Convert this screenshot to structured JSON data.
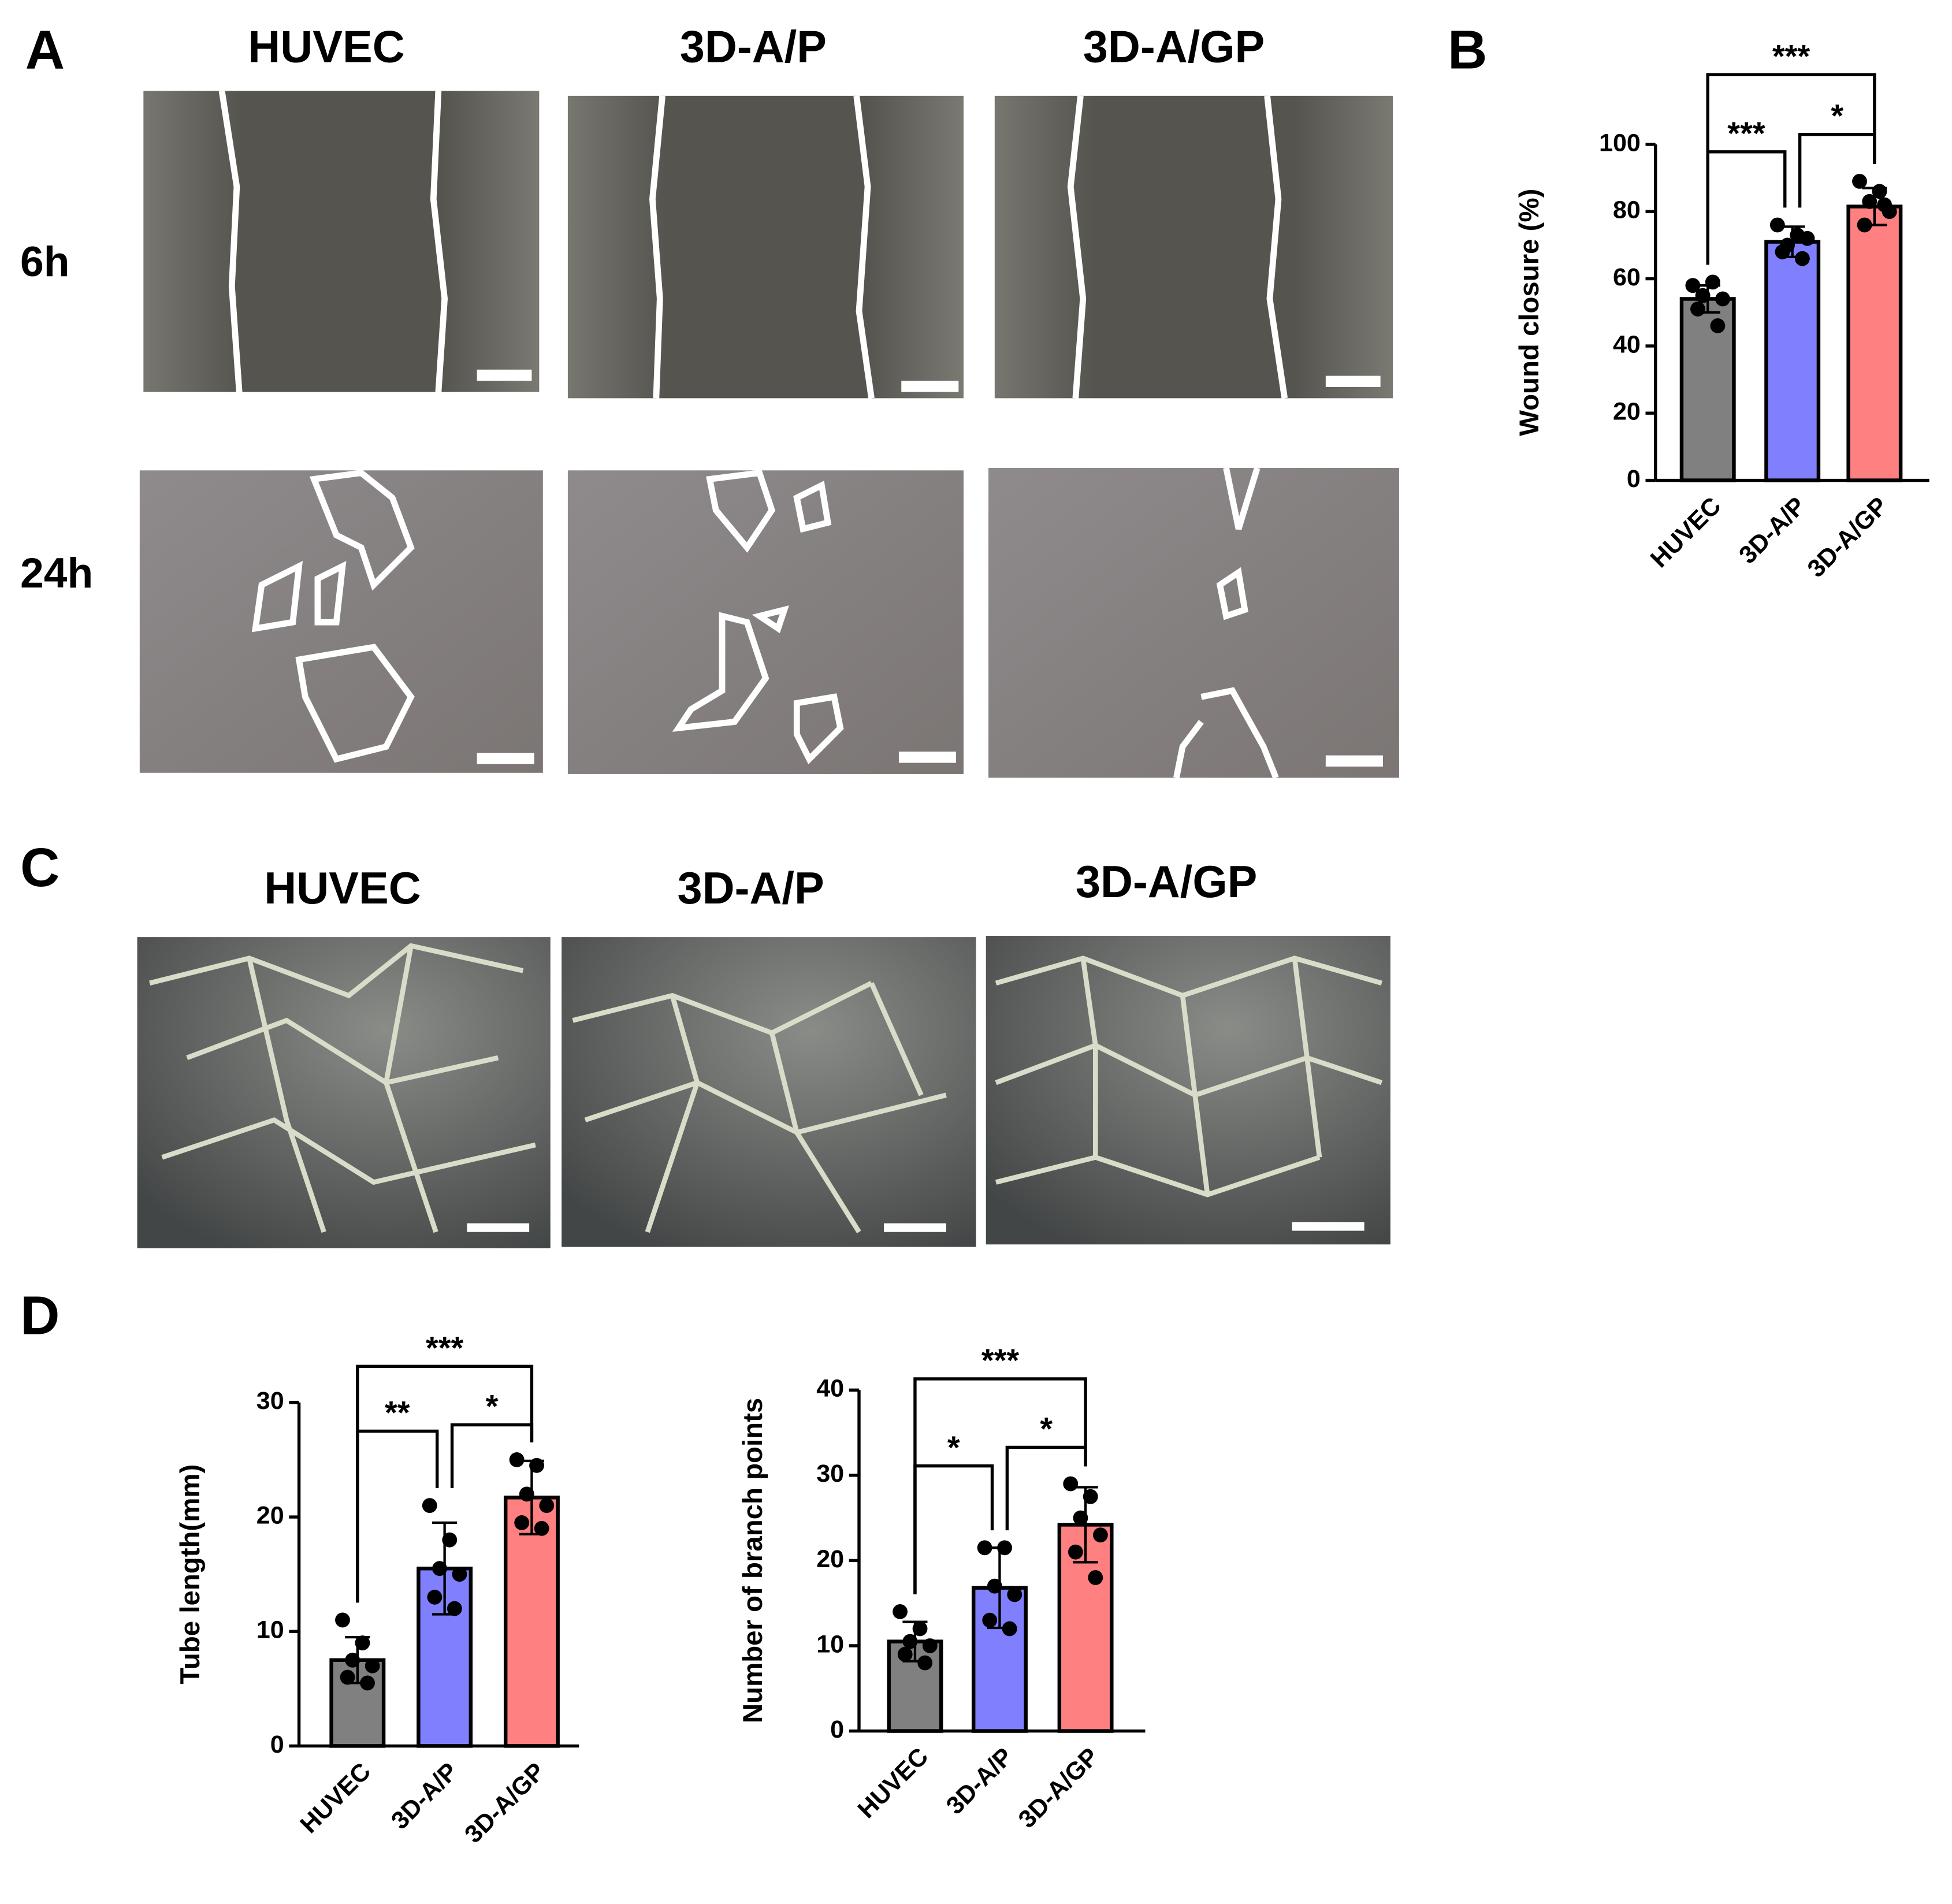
{
  "panel_labels": [
    "A",
    "B",
    "C",
    "D"
  ],
  "panel_a": {
    "columns": [
      "HUVEC",
      "3D-A/P",
      "3D-A/GP"
    ],
    "rows": [
      "6h",
      "24h"
    ]
  },
  "panel_c": {
    "columns": [
      "HUVEC",
      "3D-A/P",
      "3D-A/GP"
    ]
  },
  "chart_data": [
    {
      "type": "bar",
      "ylabel": "Wound closure (%)",
      "categories": [
        "HUVEC",
        "3D-A/P",
        "3D-A/GP"
      ],
      "values": [
        54,
        71,
        81.5
      ],
      "errors": [
        4,
        4.5,
        5.5
      ],
      "points": [
        [
          58,
          59,
          55,
          54,
          51,
          46
        ],
        [
          76,
          73,
          70,
          72,
          68,
          66
        ],
        [
          89,
          86,
          83,
          80,
          76,
          82
        ]
      ],
      "colors": [
        "#808080",
        "#8080ff",
        "#ff8080"
      ],
      "ylim": [
        0,
        100
      ],
      "yticks": [
        0,
        20,
        40,
        60,
        80,
        100
      ],
      "annotations": [
        {
          "text": "***",
          "between": [
            "HUVEC",
            "3D-A/P"
          ]
        },
        {
          "text": "*",
          "between": [
            "3D-A/P",
            "3D-A/GP"
          ]
        },
        {
          "text": "***",
          "between": [
            "HUVEC",
            "3D-A/GP"
          ]
        }
      ]
    },
    {
      "type": "bar",
      "ylabel": "Tube length(mm)",
      "categories": [
        "HUVEC",
        "3D-A/P",
        "3D-A/GP"
      ],
      "values": [
        7.5,
        15.5,
        21.7
      ],
      "errors": [
        2,
        4,
        3.2
      ],
      "points": [
        [
          11,
          9,
          7.5,
          7,
          6,
          5.5
        ],
        [
          21,
          18,
          15.5,
          15,
          13,
          12
        ],
        [
          25,
          24.5,
          22,
          21,
          19.5,
          19
        ]
      ],
      "colors": [
        "#808080",
        "#8080ff",
        "#ff8080"
      ],
      "ylim": [
        0,
        30
      ],
      "yticks": [
        0,
        10,
        20,
        30
      ],
      "annotations": [
        {
          "text": "**",
          "between": [
            "HUVEC",
            "3D-A/P"
          ]
        },
        {
          "text": "*",
          "between": [
            "3D-A/P",
            "3D-A/GP"
          ]
        },
        {
          "text": "***",
          "between": [
            "HUVEC",
            "3D-A/GP"
          ]
        }
      ]
    },
    {
      "type": "bar",
      "ylabel": "Number of branch points",
      "categories": [
        "HUVEC",
        "3D-A/P",
        "3D-A/GP"
      ],
      "values": [
        10.5,
        16.8,
        24.2
      ],
      "errors": [
        2.3,
        4.7,
        4.4
      ],
      "points": [
        [
          14,
          12,
          10.5,
          10,
          9,
          8
        ],
        [
          21.5,
          21.5,
          17,
          16,
          13,
          12
        ],
        [
          29,
          27.5,
          25,
          23,
          21,
          18
        ]
      ],
      "colors": [
        "#808080",
        "#8080ff",
        "#ff8080"
      ],
      "ylim": [
        0,
        40
      ],
      "yticks": [
        0,
        10,
        20,
        30,
        40
      ],
      "annotations": [
        {
          "text": "*",
          "between": [
            "HUVEC",
            "3D-A/P"
          ]
        },
        {
          "text": "*",
          "between": [
            "3D-A/P",
            "3D-A/GP"
          ]
        },
        {
          "text": "***",
          "between": [
            "HUVEC",
            "3D-A/GP"
          ]
        }
      ]
    }
  ]
}
